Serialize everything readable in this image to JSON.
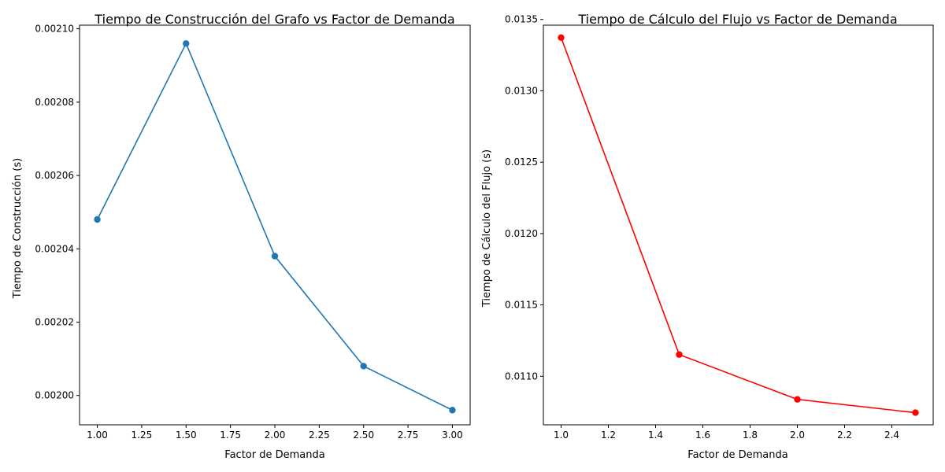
{
  "chart_data": [
    {
      "type": "line",
      "title": "Tiempo de Construcción del Grafo vs Factor de Demanda",
      "xlabel": "Factor de Demanda",
      "ylabel": "Tiempo de Construcción (s)",
      "xlim": [
        0.9,
        3.1
      ],
      "ylim": [
        0.001992,
        0.002101
      ],
      "xticks": [
        1.0,
        1.25,
        1.5,
        1.75,
        2.0,
        2.25,
        2.5,
        2.75,
        3.0
      ],
      "xtick_labels": [
        "1.00",
        "1.25",
        "1.50",
        "1.75",
        "2.00",
        "2.25",
        "2.50",
        "2.75",
        "3.00"
      ],
      "yticks": [
        0.002,
        0.00202,
        0.00204,
        0.00206,
        0.00208,
        0.0021
      ],
      "ytick_labels": [
        "0.00200",
        "0.00202",
        "0.00204",
        "0.00206",
        "0.00208",
        "0.00210"
      ],
      "grid": false,
      "series": [
        {
          "color": "#1f77b4",
          "marker": "circle",
          "x": [
            1.0,
            1.5,
            2.0,
            2.5,
            3.0
          ],
          "y": [
            0.002048,
            0.002096,
            0.002038,
            0.002008,
            0.001996
          ]
        }
      ]
    },
    {
      "type": "line",
      "title": "Tiempo de Cálculo del Flujo vs Factor de Demanda",
      "xlabel": "Factor de Demanda",
      "ylabel": "Tiempo de Cálculo del Flujo (s)",
      "xlim": [
        0.925,
        2.575
      ],
      "ylim": [
        0.01066,
        0.01346
      ],
      "xticks": [
        1.0,
        1.2,
        1.4,
        1.6,
        1.8,
        2.0,
        2.2,
        2.4
      ],
      "xtick_labels": [
        "1.0",
        "1.2",
        "1.4",
        "1.6",
        "1.8",
        "2.0",
        "2.2",
        "2.4"
      ],
      "yticks": [
        0.011,
        0.0115,
        0.012,
        0.0125,
        0.013,
        0.0135
      ],
      "ytick_labels": [
        "0.0110",
        "0.0115",
        "0.0120",
        "0.0125",
        "0.0130",
        "0.0135"
      ],
      "grid": false,
      "series": [
        {
          "color": "#ff0000",
          "marker": "circle",
          "x": [
            1.0,
            1.5,
            2.0,
            2.5
          ],
          "y": [
            0.013373,
            0.011152,
            0.010838,
            0.010745
          ]
        }
      ]
    }
  ]
}
